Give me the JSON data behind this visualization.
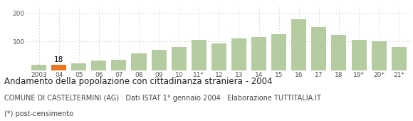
{
  "categories": [
    "2003",
    "04",
    "05",
    "06",
    "07",
    "08",
    "09",
    "10",
    "11*",
    "12",
    "13",
    "14",
    "15",
    "16",
    "17",
    "18",
    "19*",
    "20*",
    "21*"
  ],
  "values": [
    18,
    18,
    25,
    35,
    37,
    58,
    72,
    80,
    105,
    93,
    110,
    117,
    127,
    178,
    150,
    123,
    105,
    100,
    80
  ],
  "highlight_index": 1,
  "highlight_value": 18,
  "bar_color": "#b5cca0",
  "highlight_color": "#e87722",
  "title": "Andamento della popolazione con cittadinanza straniera - 2004",
  "subtitle": "COMUNE DI CASTELTERMINI (AG) · Dati ISTAT 1° gennaio 2004 · Elaborazione TUTTITALIA.IT",
  "footnote": "(*) post-censimento",
  "ylim": [
    0,
    220
  ],
  "yticks": [
    0,
    100,
    200
  ],
  "grid_color": "#cccccc",
  "background_color": "#ffffff",
  "title_fontsize": 8.5,
  "subtitle_fontsize": 7.0,
  "footnote_fontsize": 7.0,
  "tick_fontsize": 6.5,
  "annotation_fontsize": 7.5
}
